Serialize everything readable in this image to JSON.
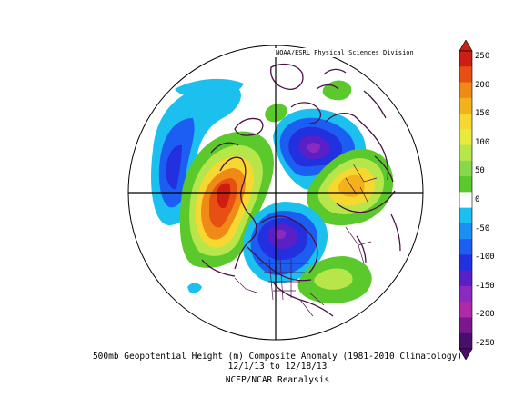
{
  "credit": "NOAA/ESRL Physical Sciences Division",
  "caption": {
    "line1": "500mb Geopotential Height (m) Composite Anomaly (1981-2010 Climatology)",
    "line2": "12/1/13  to 12/18/13",
    "line3": "NCEP/NCAR Reanalysis"
  },
  "colorbar": {
    "labels": [
      "250",
      "200",
      "150",
      "100",
      "50",
      "0",
      "-50",
      "-100",
      "-150",
      "-200",
      "-250"
    ],
    "colors": {
      "c250": "#cc1e12",
      "c225": "#e84f13",
      "c200": "#f08a17",
      "c175": "#f4b21a",
      "c150": "#f7d830",
      "c125": "#e8ea3c",
      "c100": "#b7e64a",
      "c75": "#86d948",
      "c50": "#5bc92c",
      "c0": "#ffffff",
      "m50": "#1bc0ef",
      "m75": "#1b90f2",
      "m100": "#1c5ef2",
      "m125": "#2230e0",
      "m150": "#5a20c8",
      "m175": "#8a2ac0",
      "m200": "#b02aa8",
      "m225": "#7a1890",
      "m250": "#4a0f6a"
    }
  },
  "map": {
    "projection": "North polar stereographic",
    "coastline_color": "#4a1248"
  }
}
